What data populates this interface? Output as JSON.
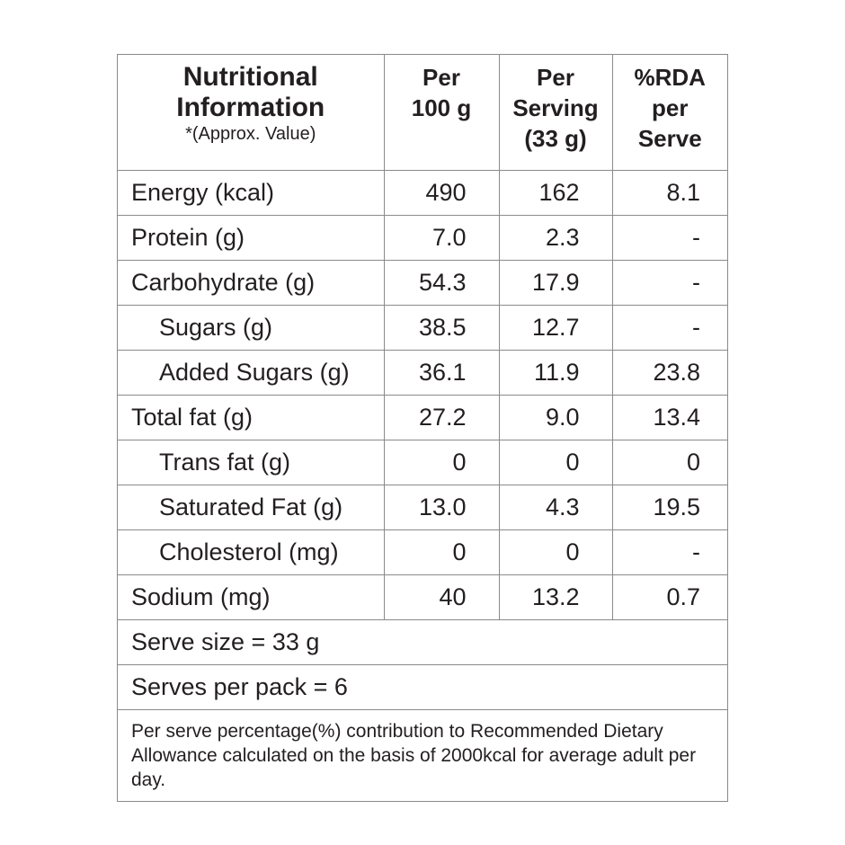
{
  "header": {
    "title_line1": "Nutritional",
    "title_line2": "Information",
    "subtitle": "*(Approx. Value)",
    "col_per100": [
      "Per",
      "100 g"
    ],
    "col_serving": [
      "Per",
      "Serving",
      "(33 g)"
    ],
    "col_rda": [
      "%RDA",
      "per",
      "Serve"
    ]
  },
  "rows": [
    {
      "label": "Energy (kcal)",
      "indent": false,
      "per100": "490",
      "serving": "162",
      "rda": "8.1"
    },
    {
      "label": "Protein (g)",
      "indent": false,
      "per100": "7.0",
      "serving": "2.3",
      "rda": "-"
    },
    {
      "label": "Carbohydrate (g)",
      "indent": false,
      "per100": "54.3",
      "serving": "17.9",
      "rda": "-"
    },
    {
      "label": "Sugars (g)",
      "indent": true,
      "per100": "38.5",
      "serving": "12.7",
      "rda": "-"
    },
    {
      "label": "Added Sugars (g)",
      "indent": true,
      "per100": "36.1",
      "serving": "11.9",
      "rda": "23.8"
    },
    {
      "label": "Total fat (g)",
      "indent": false,
      "per100": "27.2",
      "serving": "9.0",
      "rda": "13.4"
    },
    {
      "label": "Trans fat (g)",
      "indent": true,
      "per100": "0",
      "serving": "0",
      "rda": "0"
    },
    {
      "label": "Saturated Fat (g)",
      "indent": true,
      "per100": "13.0",
      "serving": "4.3",
      "rda": "19.5"
    },
    {
      "label": "Cholesterol (mg)",
      "indent": true,
      "per100": "0",
      "serving": "0",
      "rda": "-"
    },
    {
      "label": "Sodium (mg)",
      "indent": false,
      "per100": "40",
      "serving": "13.2",
      "rda": "0.7"
    }
  ],
  "serve_size": "Serve size = 33 g",
  "serves_per_pack": "Serves per pack = 6",
  "footnote": "Per serve percentage(%) contribution to Recommended Dietary Allowance calculated on the basis of 2000kcal for average adult per day.",
  "colors": {
    "text": "#231f20",
    "border": "#8a8a8a",
    "background": "#ffffff"
  }
}
